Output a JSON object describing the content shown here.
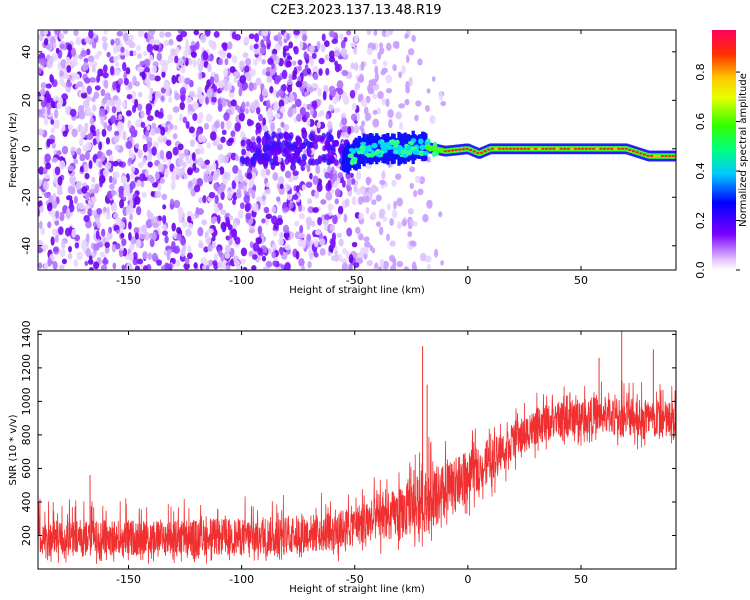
{
  "title": "C2E3.2023.137.13.48.R19",
  "chart_data": [
    {
      "type": "heatmap",
      "xlabel": "Height of straight line (km)",
      "ylabel": "Frequency (Hz)",
      "xlim": [
        -190,
        92
      ],
      "ylim": [
        -50,
        49
      ],
      "xticks": [
        -150,
        -100,
        -50,
        0,
        50
      ],
      "yticks": [
        -40,
        -20,
        0,
        20,
        40
      ],
      "colorbar": {
        "label": "Normalized spectral amplitude",
        "range": [
          0.0,
          0.97
        ],
        "ticks": [
          0.0,
          0.2,
          0.4,
          0.6,
          0.8
        ],
        "tick_labels": [
          "0.0",
          "0.2",
          "0.4",
          "0.6",
          "0.8"
        ]
      },
      "description_points": {
        "noise_region_x": [
          -190,
          -30
        ],
        "signal_track": [
          {
            "x": -55,
            "freq": -5
          },
          {
            "x": -45,
            "freq": 0
          },
          {
            "x": -30,
            "freq": 0
          },
          {
            "x": -20,
            "freq": 1
          },
          {
            "x": -10,
            "freq": -1
          },
          {
            "x": 0,
            "freq": 0
          },
          {
            "x": 5,
            "freq": -2
          },
          {
            "x": 10,
            "freq": 0
          },
          {
            "x": 30,
            "freq": 0
          },
          {
            "x": 50,
            "freq": 0
          },
          {
            "x": 70,
            "freq": 0
          },
          {
            "x": 80,
            "freq": -3
          },
          {
            "x": 92,
            "freq": -3
          }
        ]
      }
    },
    {
      "type": "line",
      "xlabel": "Height of straight line (km)",
      "ylabel": "SNR (10 * v/v)",
      "xlim": [
        -190,
        92
      ],
      "ylim": [
        0,
        1420
      ],
      "xticks": [
        -150,
        -100,
        -50,
        0,
        50
      ],
      "yticks": [
        200,
        400,
        600,
        800,
        1000,
        1200,
        1400
      ],
      "color": "#f03030",
      "envelope": [
        {
          "x": -190,
          "low": 30,
          "mid": 180,
          "high": 420
        },
        {
          "x": -150,
          "low": 30,
          "mid": 185,
          "high": 430
        },
        {
          "x": -100,
          "low": 30,
          "mid": 190,
          "high": 440
        },
        {
          "x": -60,
          "low": 40,
          "mid": 220,
          "high": 460
        },
        {
          "x": -50,
          "low": 50,
          "mid": 260,
          "high": 500
        },
        {
          "x": -40,
          "low": 80,
          "mid": 300,
          "high": 560
        },
        {
          "x": -30,
          "low": 100,
          "mid": 330,
          "high": 650
        },
        {
          "x": -20,
          "low": 130,
          "mid": 400,
          "high": 800
        },
        {
          "x": -10,
          "low": 150,
          "mid": 450,
          "high": 800
        },
        {
          "x": 0,
          "low": 300,
          "mid": 560,
          "high": 820
        },
        {
          "x": 10,
          "low": 420,
          "mid": 650,
          "high": 880
        },
        {
          "x": 20,
          "low": 560,
          "mid": 760,
          "high": 950
        },
        {
          "x": 30,
          "low": 650,
          "mid": 850,
          "high": 1050
        },
        {
          "x": 40,
          "low": 700,
          "mid": 890,
          "high": 1100
        },
        {
          "x": 50,
          "low": 730,
          "mid": 910,
          "high": 1130
        },
        {
          "x": 60,
          "low": 730,
          "mid": 920,
          "high": 1140
        },
        {
          "x": 70,
          "low": 720,
          "mid": 910,
          "high": 1150
        },
        {
          "x": 80,
          "low": 700,
          "mid": 890,
          "high": 1140
        },
        {
          "x": 92,
          "low": 690,
          "mid": 880,
          "high": 1130
        }
      ],
      "spikes": [
        {
          "x": -20,
          "value": 1330
        },
        {
          "x": -18,
          "value": 1100
        },
        {
          "x": 68,
          "value": 1420
        },
        {
          "x": 58,
          "value": 1260
        },
        {
          "x": 82,
          "value": 1310
        },
        {
          "x": -167,
          "value": 560
        }
      ]
    }
  ]
}
